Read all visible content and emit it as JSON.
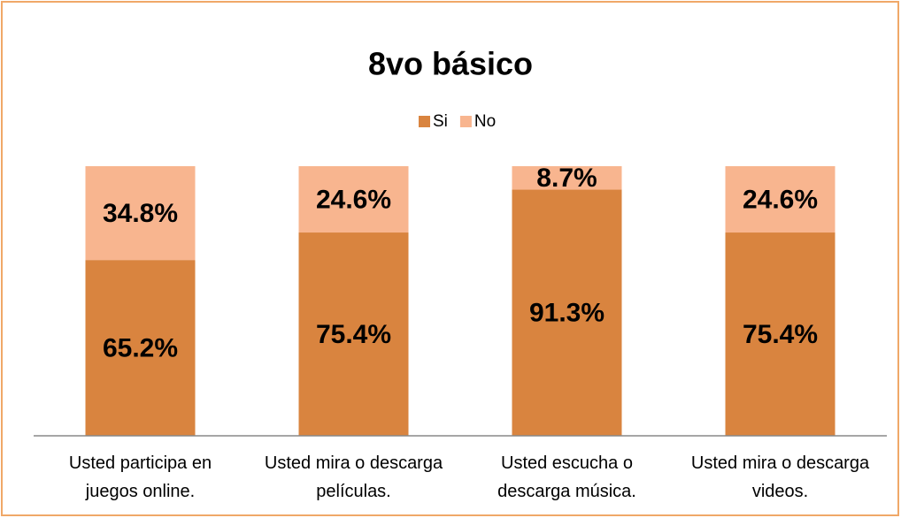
{
  "chart_data": {
    "type": "stacked_bar",
    "title": "8vo básico",
    "categories": [
      "Usted participa en juegos online.",
      "Usted mira o descarga películas.",
      "Usted escucha o descarga música.",
      "Usted mira o descarga videos."
    ],
    "series": [
      {
        "name": "Si",
        "color": "#d9843f",
        "values": [
          65.2,
          75.4,
          91.3,
          75.4
        ],
        "value_labels": [
          "65.2%",
          "75.4%",
          "91.3%",
          "75.4%"
        ]
      },
      {
        "name": "No",
        "color": "#f8b58f",
        "values": [
          34.8,
          24.6,
          8.7,
          24.6
        ],
        "value_labels": [
          "34.8%",
          "24.6%",
          "8.7%",
          "24.6%"
        ]
      }
    ],
    "ylim": [
      0,
      100
    ],
    "legend": "top"
  }
}
